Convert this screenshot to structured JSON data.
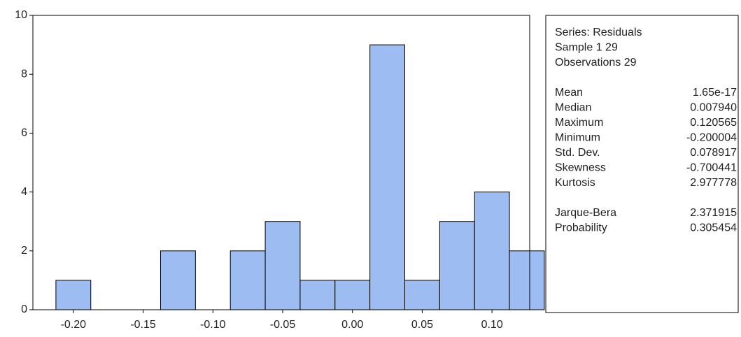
{
  "chart_data": {
    "type": "histogram",
    "bins": [
      -0.2125,
      -0.1875,
      -0.1625,
      -0.1375,
      -0.1125,
      -0.0875,
      -0.0625,
      -0.0375,
      -0.0125,
      0.0125,
      0.0375,
      0.0625,
      0.0875,
      0.1125,
      0.1375
    ],
    "values": [
      1,
      0,
      0,
      2,
      0,
      2,
      3,
      1,
      1,
      9,
      1,
      3,
      4,
      2
    ],
    "color": "#9dbdf2",
    "xlim": [
      -0.229,
      0.127
    ],
    "xticks": [
      {
        "value": -0.2,
        "label": "-0.20"
      },
      {
        "value": -0.15,
        "label": "-0.15"
      },
      {
        "value": -0.1,
        "label": "-0.10"
      },
      {
        "value": -0.05,
        "label": "-0.05"
      },
      {
        "value": 0,
        "label": "0.00"
      },
      {
        "value": 0.05,
        "label": "0.05"
      },
      {
        "value": 0.1,
        "label": "0.10"
      }
    ],
    "ylim": [
      0,
      10
    ],
    "yticks": [
      0,
      2,
      4,
      6,
      8,
      10
    ],
    "stats": {
      "header": [
        "Series: Residuals",
        "Sample 1 29",
        "Observations 29"
      ],
      "rows": [
        [
          "Mean",
          "1.65e-17"
        ],
        [
          "Median",
          "0.007940"
        ],
        [
          "Maximum",
          "0.120565"
        ],
        [
          "Minimum",
          "-0.200004"
        ],
        [
          "Std. Dev.",
          "0.078917"
        ],
        [
          "Skewness",
          "-0.700441"
        ],
        [
          "Kurtosis",
          "2.977778"
        ]
      ],
      "tests": [
        [
          "Jarque-Bera",
          "2.371915"
        ],
        [
          "Probability",
          "0.305454"
        ]
      ]
    }
  }
}
